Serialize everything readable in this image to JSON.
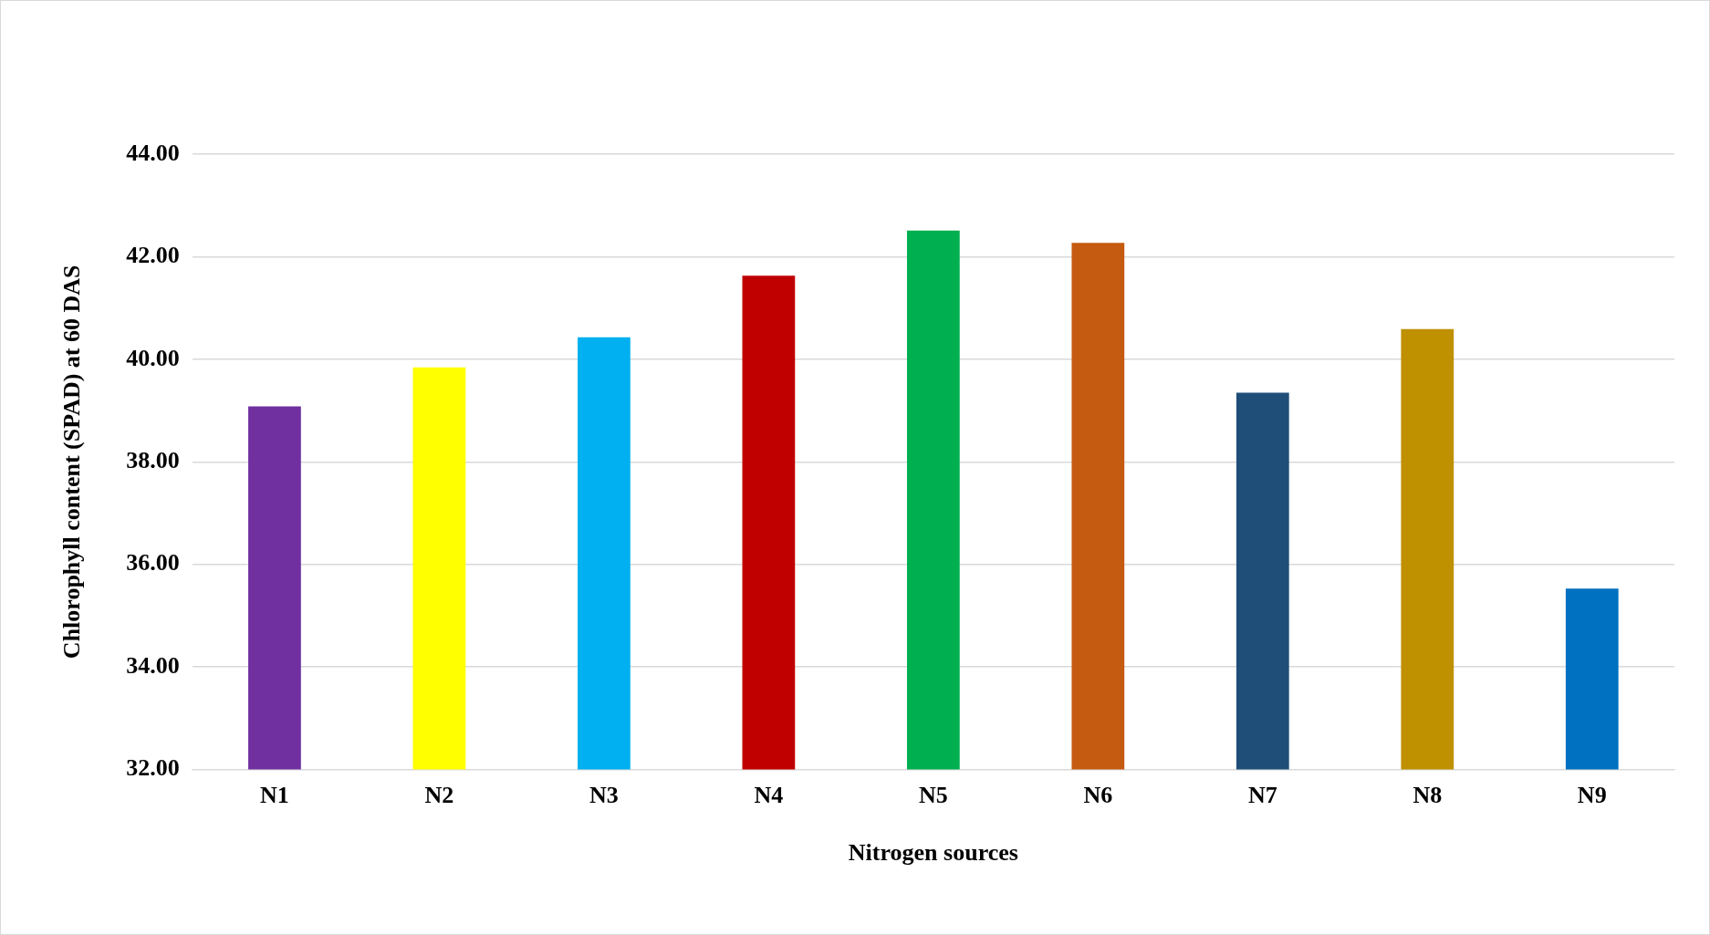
{
  "chart_data": {
    "type": "bar",
    "xlabel": "Nitrogen sources",
    "ylabel": "Chlorophyll content (SPAD) at 60 DAS",
    "categories": [
      "N1",
      "N2",
      "N3",
      "N4",
      "N5",
      "N6",
      "N7",
      "N8",
      "N9"
    ],
    "values": [
      39.08,
      39.84,
      40.43,
      41.63,
      42.51,
      42.27,
      39.35,
      40.59,
      35.53
    ],
    "colors": [
      "#7030a0",
      "#ffff00",
      "#00b0f0",
      "#c00000",
      "#00b050",
      "#c55a11",
      "#1f4e79",
      "#bf9000",
      "#0070c0"
    ],
    "ylim": [
      32,
      44
    ],
    "yticks": [
      {
        "value": 32,
        "label": "32.00"
      },
      {
        "value": 34,
        "label": "34.00"
      },
      {
        "value": 36,
        "label": "36.00"
      },
      {
        "value": 38,
        "label": "38.00"
      },
      {
        "value": 40,
        "label": "40.00"
      },
      {
        "value": 42,
        "label": "42.00"
      },
      {
        "value": 44,
        "label": "44.00"
      }
    ],
    "grid": "y",
    "legend": false
  }
}
